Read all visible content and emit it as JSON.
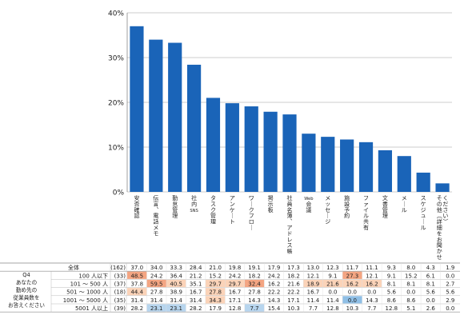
{
  "chart_data": {
    "type": "bar",
    "color": "#1a64b8",
    "ylim": [
      0,
      40
    ],
    "yticks": [
      "0%",
      "10%",
      "20%",
      "30%",
      "40%"
    ],
    "categories": [
      "安否確認",
      "伝言、電話メモ",
      "勤怠管理",
      "社内SNS",
      "タスク管理",
      "アンケート",
      "ワークフロー",
      "掲示板",
      "社員名簿、アドレス帳",
      "Web会議",
      "メッセージ",
      "施設予約",
      "ファイル共有",
      "文書管理",
      "メール",
      "スケジュール",
      "その他（詳細をお聞かせください）"
    ],
    "values": [
      37.0,
      34.0,
      33.3,
      28.4,
      21.0,
      19.8,
      19.1,
      17.9,
      17.3,
      13.0,
      12.3,
      11.7,
      11.1,
      9.3,
      8.0,
      4.3,
      1.9
    ]
  },
  "table": {
    "question_label": [
      "Q4",
      "あなたの",
      "勤め先の",
      "従業員数を",
      "お答えください"
    ],
    "rows": [
      {
        "label": "全体",
        "n": "(162)",
        "values": [
          "37.0",
          "34.0",
          "33.3",
          "28.4",
          "21.0",
          "19.8",
          "19.1",
          "17.9",
          "17.3",
          "13.0",
          "12.3",
          "11.7",
          "11.1",
          "9.3",
          "8.0",
          "4.3",
          "1.9"
        ]
      },
      {
        "label": "100 人以下",
        "n": "(33)",
        "values": [
          "48.5",
          "24.2",
          "36.4",
          "21.2",
          "15.2",
          "24.2",
          "18.2",
          "24.2",
          "18.2",
          "12.1",
          "9.1",
          "27.3",
          "12.1",
          "9.1",
          "15.2",
          "6.1",
          "0.0"
        ]
      },
      {
        "label": "101 ～ 500 人",
        "n": "(37)",
        "values": [
          "37.8",
          "59.5",
          "40.5",
          "35.1",
          "29.7",
          "29.7",
          "32.4",
          "16.2",
          "21.6",
          "18.9",
          "21.6",
          "16.2",
          "16.2",
          "8.1",
          "8.1",
          "8.1",
          "2.7"
        ]
      },
      {
        "label": "501 ～ 1000 人",
        "n": "(18)",
        "values": [
          "44.4",
          "27.8",
          "38.9",
          "16.7",
          "27.8",
          "16.7",
          "27.8",
          "22.2",
          "22.2",
          "16.7",
          "0.0",
          "0.0",
          "0.0",
          "5.6",
          "0.0",
          "5.6",
          "5.6"
        ]
      },
      {
        "label": "1001 ～ 5000 人",
        "n": "(35)",
        "values": [
          "31.4",
          "31.4",
          "31.4",
          "31.4",
          "34.3",
          "17.1",
          "14.3",
          "14.3",
          "17.1",
          "11.4",
          "11.4",
          "0.0",
          "14.3",
          "8.6",
          "8.6",
          "0.0",
          "2.9"
        ]
      },
      {
        "label": "5001 人以上",
        "n": "(39)",
        "values": [
          "28.2",
          "23.1",
          "23.1",
          "28.2",
          "17.9",
          "12.8",
          "7.7",
          "15.4",
          "10.3",
          "7.7",
          "12.8",
          "10.3",
          "7.7",
          "12.8",
          "5.1",
          "2.6",
          "0.0"
        ]
      }
    ],
    "highlights": [
      {
        "row": 1,
        "col": 0,
        "color": "#f4a582"
      },
      {
        "row": 1,
        "col": 11,
        "color": "#f4a582"
      },
      {
        "row": 2,
        "col": 1,
        "color": "#f4a582"
      },
      {
        "row": 2,
        "col": 2,
        "color": "#fbd3b8"
      },
      {
        "row": 2,
        "col": 4,
        "color": "#fbd3b8"
      },
      {
        "row": 2,
        "col": 5,
        "color": "#fbd3b8"
      },
      {
        "row": 2,
        "col": 6,
        "color": "#f4a582"
      },
      {
        "row": 2,
        "col": 9,
        "color": "#fbd3b8"
      },
      {
        "row": 2,
        "col": 10,
        "color": "#fbd3b8"
      },
      {
        "row": 2,
        "col": 11,
        "color": "#fbd3b8"
      },
      {
        "row": 2,
        "col": 12,
        "color": "#fbd3b8"
      },
      {
        "row": 3,
        "col": 0,
        "color": "#fbd3b8"
      },
      {
        "row": 3,
        "col": 4,
        "color": "#fbd3b8"
      },
      {
        "row": 4,
        "col": 4,
        "color": "#fbd3b8"
      },
      {
        "row": 4,
        "col": 11,
        "color": "#8fbfe6"
      },
      {
        "row": 5,
        "col": 1,
        "color": "#b7d5ee"
      },
      {
        "row": 5,
        "col": 2,
        "color": "#b7d5ee"
      },
      {
        "row": 5,
        "col": 6,
        "color": "#b7d5ee"
      }
    ]
  }
}
